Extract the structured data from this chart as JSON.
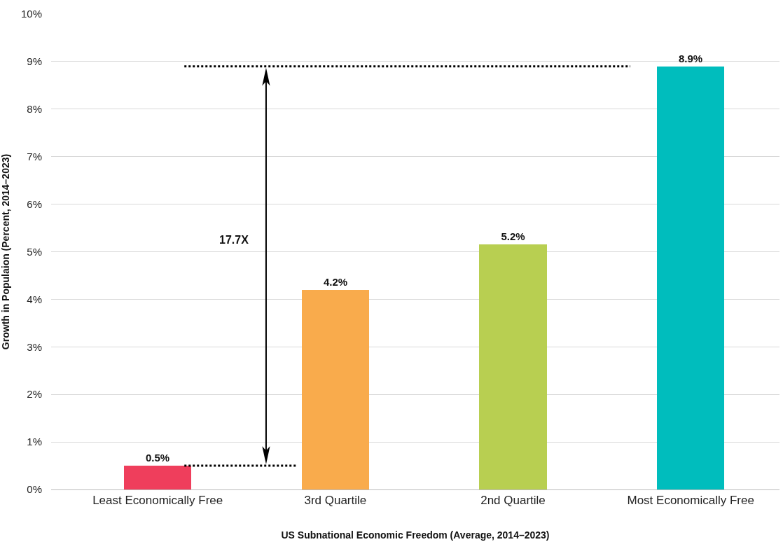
{
  "chart_data": {
    "type": "bar",
    "xlabel": "US Subnational Economic Freedom (Average, 2014–2023)",
    "ylabel": "Growth in Populaion (Percent, 2014–2023)",
    "categories": [
      "Least Economically Free",
      "3rd Quartile",
      "2nd Quartile",
      "Most Economically Free"
    ],
    "values": [
      0.5,
      4.2,
      5.15,
      8.9
    ],
    "value_labels": [
      "0.5%",
      "4.2%",
      "5.2%",
      "8.9%"
    ],
    "colors": [
      "#ef3e5c",
      "#f9ab4c",
      "#b8cf51",
      "#00bdbd"
    ],
    "ylim": [
      0,
      10
    ],
    "yticks": [
      {
        "value": 0,
        "label": "0%"
      },
      {
        "value": 1,
        "label": "1%"
      },
      {
        "value": 2,
        "label": "2%"
      },
      {
        "value": 3,
        "label": "3%"
      },
      {
        "value": 4,
        "label": "4%"
      },
      {
        "value": 5,
        "label": "5%"
      },
      {
        "value": 6,
        "label": "6%"
      },
      {
        "value": 7,
        "label": "7%"
      },
      {
        "value": 8,
        "label": "8%"
      },
      {
        "value": 9,
        "label": "9%"
      },
      {
        "value": 10,
        "label": "10%"
      }
    ],
    "grid": "y",
    "ref_lines": [
      {
        "axis": "y",
        "value": 0.5,
        "color": "#000000",
        "line_style": "dotted"
      },
      {
        "axis": "y",
        "value": 8.9,
        "color": "#000000",
        "line_style": "dotted"
      }
    ],
    "annotations": [
      "17.7X"
    ]
  }
}
